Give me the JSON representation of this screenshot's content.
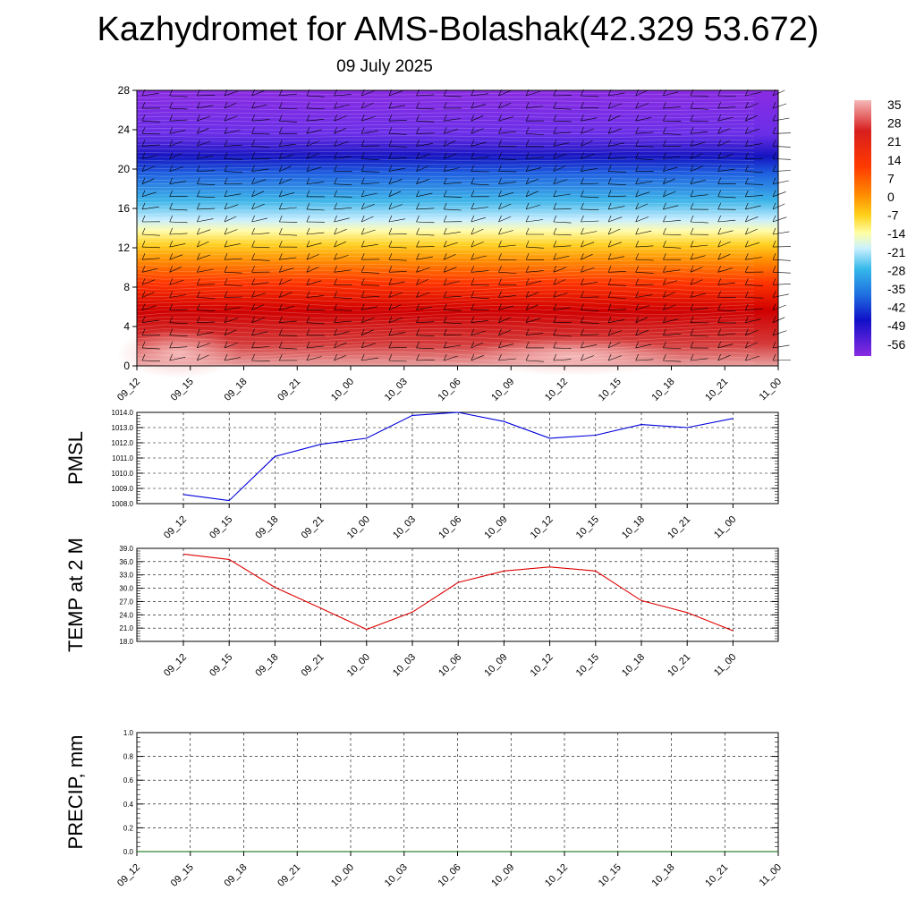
{
  "title": "Kazhydromet for AMS-Bolashak(42.329 53.672)",
  "subtitle": "09 July 2025",
  "colors": {
    "pmsl_line": "#0000dd",
    "temp_line": "#dd0000",
    "precip_line": "#006400"
  },
  "chart_data": [
    {
      "type": "heatmap",
      "name": "cross-section",
      "x_ticks": [
        "09_12",
        "09_15",
        "09_18",
        "09_21",
        "10_00",
        "10_03",
        "10_06",
        "10_09",
        "10_12",
        "10_15",
        "10_18",
        "10_21",
        "11_00"
      ],
      "y_ticks": [
        0,
        4,
        8,
        12,
        16,
        20,
        24,
        28
      ],
      "ylim": [
        0,
        28
      ],
      "colorbar_labels": [
        35,
        28,
        21,
        14,
        7,
        0,
        -7,
        -14,
        -21,
        -28,
        -35,
        -42,
        -49,
        -56
      ],
      "wind_barbs": true
    },
    {
      "type": "line",
      "name": "pmsl",
      "ylabel": "PMSL",
      "x": [
        "09_12",
        "09_15",
        "09_18",
        "09_21",
        "10_00",
        "10_03",
        "10_06",
        "10_09",
        "10_12",
        "10_15",
        "10_18",
        "10_21",
        "11_00"
      ],
      "values": [
        1008.6,
        1008.2,
        1011.1,
        1011.9,
        1012.3,
        1013.8,
        1014.0,
        1013.4,
        1012.3,
        1012.5,
        1013.2,
        1013.0,
        1013.6
      ],
      "ylim": [
        1008.0,
        1014.0
      ],
      "y_ticks": [
        "1008.0",
        "1009.0",
        "1010.0",
        "1011.0",
        "1012.0",
        "1013.0",
        "1014.0"
      ],
      "grid": true
    },
    {
      "type": "line",
      "name": "temp",
      "ylabel": "TEMP at 2 M",
      "x": [
        "09_12",
        "09_15",
        "09_18",
        "09_21",
        "10_00",
        "10_03",
        "10_06",
        "10_09",
        "10_12",
        "10_15",
        "10_18",
        "10_21",
        "11_00"
      ],
      "values": [
        37.7,
        36.5,
        30.2,
        25.5,
        20.7,
        24.6,
        31.3,
        33.9,
        34.8,
        33.9,
        27.2,
        24.5,
        20.4
      ],
      "ylim": [
        18.0,
        39.0
      ],
      "y_ticks": [
        "18.0",
        "21.0",
        "24.0",
        "27.0",
        "30.0",
        "33.0",
        "36.0",
        "39.0"
      ],
      "grid": true
    },
    {
      "type": "line",
      "name": "precip",
      "ylabel": "PRECIP, mm",
      "x": [
        "09_12",
        "09_15",
        "09_18",
        "09_21",
        "10_00",
        "10_03",
        "10_06",
        "10_09",
        "10_12",
        "10_15",
        "10_18",
        "10_21",
        "11_00"
      ],
      "values": [
        0,
        0,
        0,
        0,
        0,
        0,
        0,
        0,
        0,
        0,
        0,
        0,
        0
      ],
      "ylim": [
        0.0,
        1.0
      ],
      "y_ticks": [
        "0.0",
        "0.2",
        "0.4",
        "0.6",
        "0.8",
        "1.0"
      ],
      "grid": true
    }
  ]
}
